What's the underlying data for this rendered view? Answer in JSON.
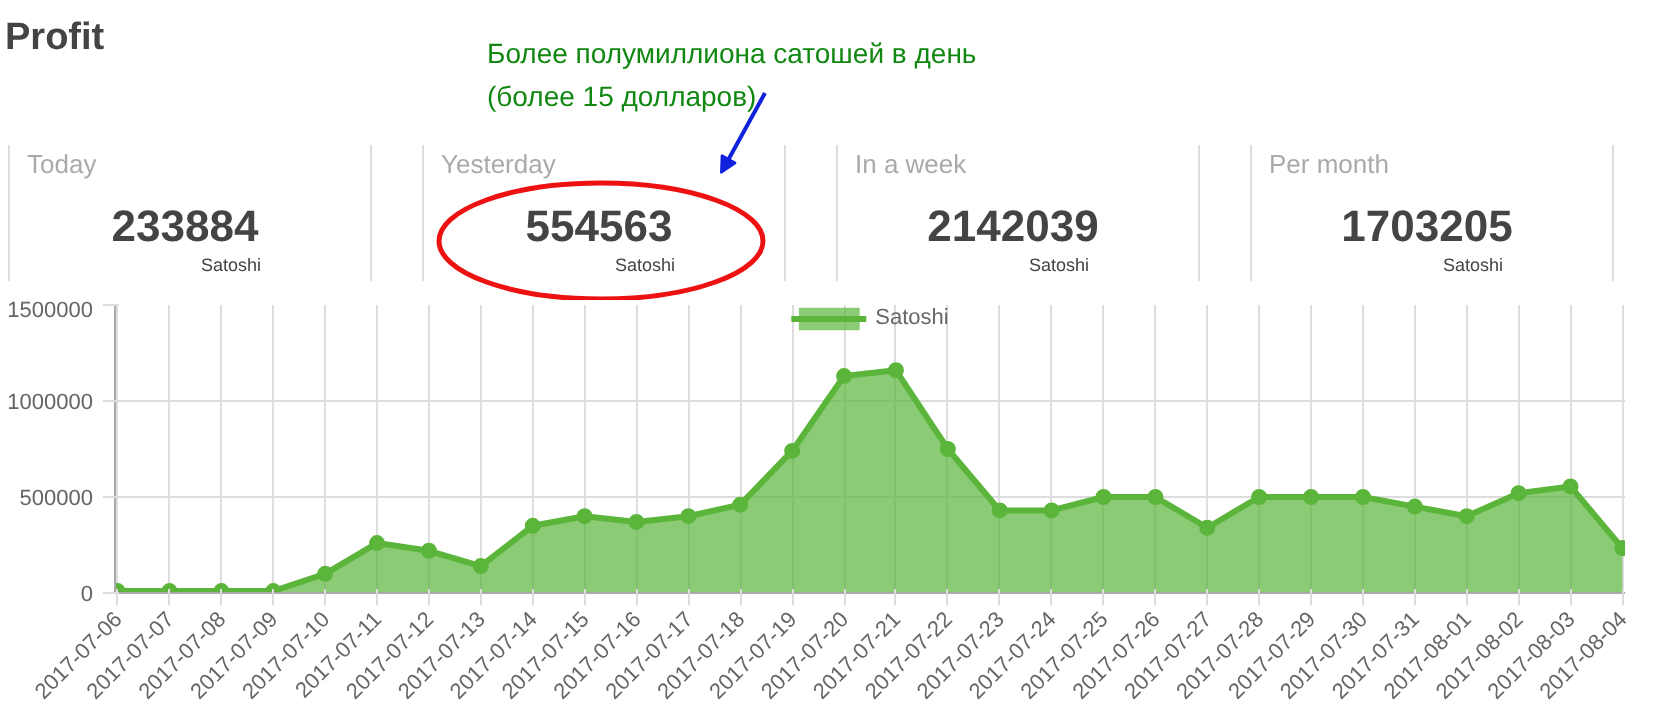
{
  "chart_data": [
    {
      "type": "other",
      "title": "Profit",
      "categories": [
        "Today",
        "Yesterday",
        "In a week",
        "Per month"
      ],
      "values": [
        233884,
        554563,
        2142039,
        1703205
      ],
      "data_labels": true,
      "ylabel": "Satoshi",
      "annotations": [
        "Более полумиллиона сатошей в день\n(более 15 долларов)"
      ]
    },
    {
      "type": "area",
      "categories": [
        "2017-07-06",
        "2017-07-07",
        "2017-07-08",
        "2017-07-09",
        "2017-07-10",
        "2017-07-11",
        "2017-07-12",
        "2017-07-13",
        "2017-07-14",
        "2017-07-15",
        "2017-07-16",
        "2017-07-17",
        "2017-07-18",
        "2017-07-19",
        "2017-07-20",
        "2017-07-21",
        "2017-07-22",
        "2017-07-23",
        "2017-07-24",
        "2017-07-25",
        "2017-07-26",
        "2017-07-27",
        "2017-07-28",
        "2017-07-29",
        "2017-07-30",
        "2017-07-31",
        "2017-08-01",
        "2017-08-02",
        "2017-08-03",
        "2017-08-04"
      ],
      "series": [
        {
          "name": "Satoshi",
          "color": "#5bb53a",
          "values": [
            10000,
            10000,
            10000,
            10000,
            100000,
            260000,
            220000,
            140000,
            350000,
            400000,
            370000,
            400000,
            460000,
            740000,
            1130000,
            1160000,
            750000,
            430000,
            430000,
            500000,
            500000,
            340000,
            500000,
            500000,
            500000,
            450000,
            400000,
            520000,
            554563,
            233884
          ]
        }
      ],
      "ylim": [
        0,
        1500000
      ],
      "yticks": [
        0,
        500000,
        1000000,
        1500000
      ],
      "grid": true,
      "legend": "top",
      "marker": "circle",
      "line_style": "solid"
    }
  ]
}
